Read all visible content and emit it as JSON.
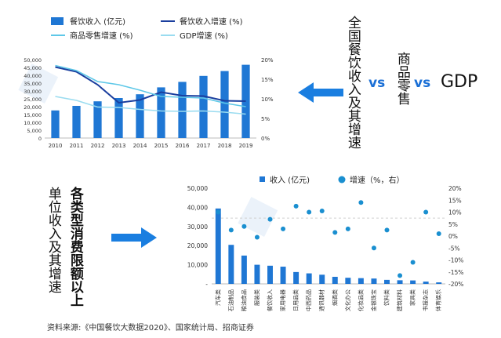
{
  "text": {
    "top_right_vertical": "全国餐饮收入及其增速",
    "compare_a": "商品零售",
    "vs": "vs",
    "compare_b": "GDP",
    "bottom_left_col1": "单位收入及其增速",
    "bottom_left_col2": "各类型消费限额以上",
    "source": "资料来源:《中国餐饮大数据2020》、国家统计局、招商证券"
  },
  "colors": {
    "bar": "#1f77d4",
    "growth_dark": "#1a3e9e",
    "retail": "#5ec8e8",
    "gdp": "#9adcf0",
    "dot": "#1a8fd0",
    "arrow": "#1a7ee0"
  },
  "chart_data": [
    {
      "type": "bar",
      "categories": [
        "2010",
        "2011",
        "2012",
        "2013",
        "2014",
        "2015",
        "2016",
        "2017",
        "2018",
        "2019"
      ],
      "series": [
        {
          "name": "餐饮收入 (亿元)",
          "kind": "bar",
          "axis": "left",
          "values": [
            17600,
            20500,
            23400,
            25500,
            27900,
            32300,
            35800,
            39600,
            42700,
            46700
          ]
        },
        {
          "name": "餐饮收入增速 (%)",
          "kind": "line",
          "axis": "right",
          "values": [
            18.1,
            16.9,
            13.6,
            9.0,
            9.7,
            11.7,
            10.8,
            10.7,
            9.5,
            9.4
          ]
        },
        {
          "name": "商品零售增速 (%)",
          "kind": "line",
          "axis": "right",
          "values": [
            18.5,
            17.2,
            14.4,
            13.6,
            12.2,
            10.6,
            10.4,
            10.2,
            8.9,
            8.0
          ]
        },
        {
          "name": "GDP增速 (%)",
          "kind": "line",
          "axis": "right",
          "values": [
            10.6,
            9.6,
            7.9,
            7.8,
            7.3,
            6.9,
            6.8,
            6.9,
            6.6,
            6.1
          ]
        }
      ],
      "ylim_left": [
        0,
        50000
      ],
      "yticks_left": [
        "0",
        "5,000",
        "10,000",
        "15,000",
        "20,000",
        "25,000",
        "30,000",
        "35,000",
        "40,000",
        "45,000",
        "50,000"
      ],
      "ylim_right": [
        0,
        20
      ],
      "yticks_right": [
        "0%",
        "5%",
        "10%",
        "15%",
        "20%"
      ],
      "legend_placement": "top"
    },
    {
      "type": "bar",
      "categories": [
        "汽车类",
        "石油制品",
        "粮油食品",
        "服装类",
        "餐饮收入",
        "家用电器",
        "日用品类",
        "中西药品",
        "通讯器材",
        "烟酒类",
        "文化办公",
        "化妆品类",
        "金银珠宝",
        "饮料类",
        "建筑材料",
        "家具类",
        "书报杂志",
        "体育娱乐"
      ],
      "series": [
        {
          "name": "收入 (亿元)",
          "kind": "bar",
          "axis": "left",
          "values": [
            39400,
            20400,
            14800,
            10000,
            9500,
            9000,
            6200,
            5500,
            4800,
            3700,
            3200,
            3000,
            2800,
            2100,
            1900,
            1800,
            1200,
            800
          ]
        },
        {
          "name": "增速（%，右）",
          "kind": "dot",
          "axis": "right",
          "values": [
            10.0,
            2.5,
            4.0,
            -0.5,
            7.0,
            3.0,
            12.5,
            10.0,
            10.5,
            1.5,
            3.0,
            14.0,
            -5.0,
            2.5,
            -16.5,
            -11.0,
            10.0,
            1.0
          ]
        }
      ],
      "ylim_left": [
        0,
        50000
      ],
      "yticks_left": [
        "-",
        "10,000",
        "20,000",
        "30,000",
        "40,000",
        "50,000"
      ],
      "ylim_right": [
        -20,
        20
      ],
      "yticks_right": [
        "20%",
        "15%",
        "10%",
        "5%",
        "0%",
        "-5%",
        "-10%",
        "-15%",
        "-20%"
      ],
      "legend_placement": "top"
    }
  ]
}
